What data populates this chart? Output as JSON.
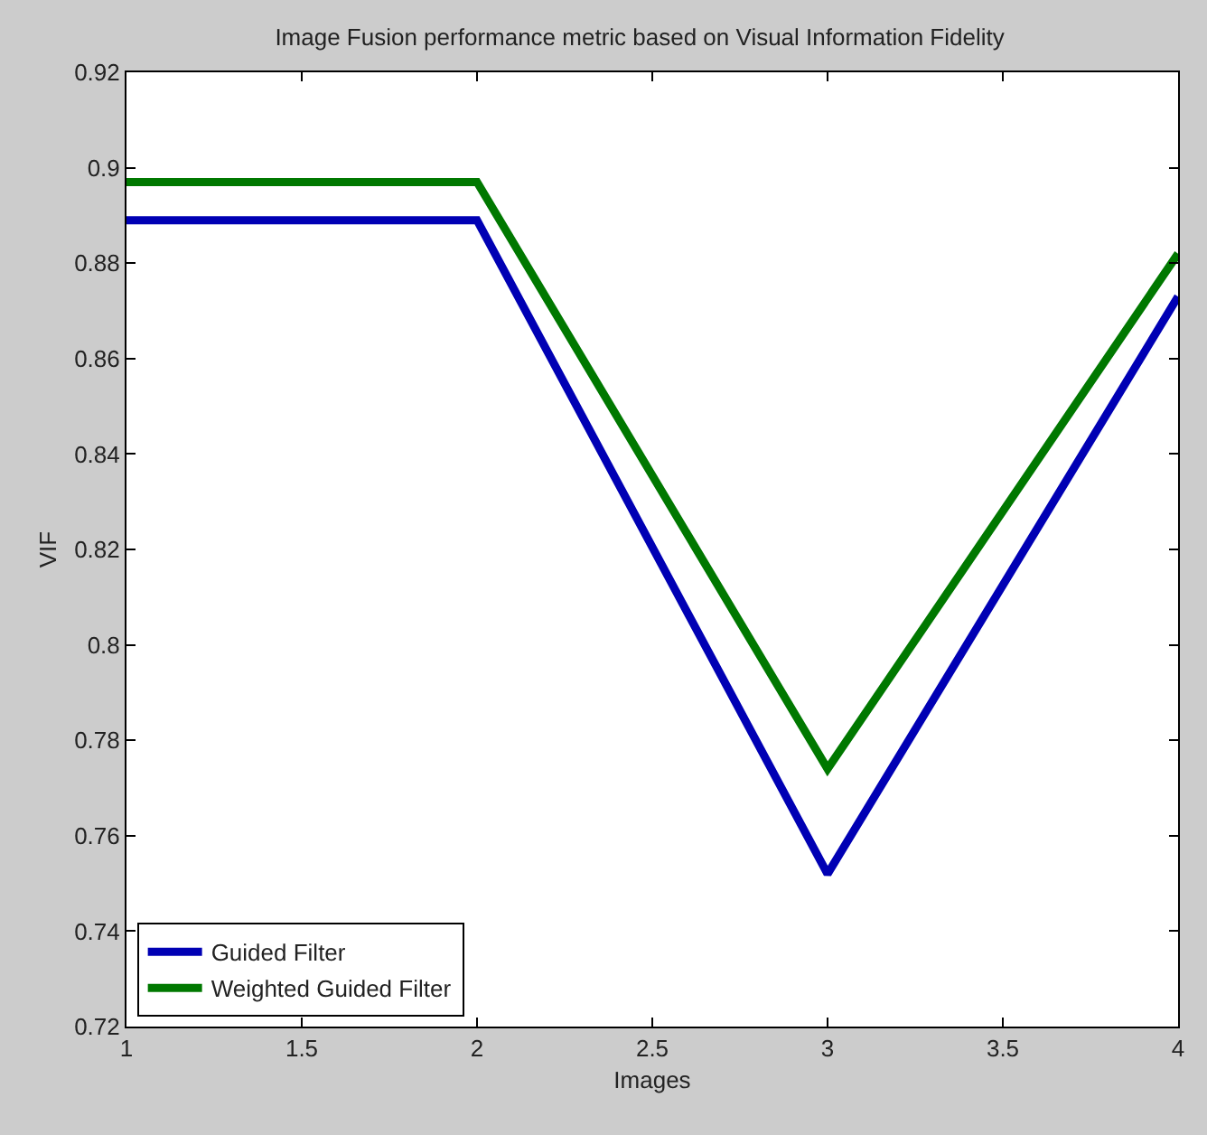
{
  "chart_data": {
    "type": "line",
    "title": "Image Fusion performance metric based on Visual Information Fidelity",
    "xlabel": "Images",
    "ylabel": "VIF",
    "x": [
      1,
      2,
      3,
      4
    ],
    "series": [
      {
        "name": "Guided Filter",
        "color": "#0000b4",
        "values": [
          0.889,
          0.889,
          0.752,
          0.873
        ]
      },
      {
        "name": "Weighted Guided Filter",
        "color": "#007800",
        "values": [
          0.897,
          0.897,
          0.774,
          0.882
        ]
      }
    ],
    "xlim": [
      1,
      4
    ],
    "xticks": [
      1,
      1.5,
      2,
      2.5,
      3,
      3.5,
      4
    ],
    "ylim": [
      0.72,
      0.92
    ],
    "yticks": [
      0.72,
      0.74,
      0.76,
      0.78,
      0.8,
      0.82,
      0.84,
      0.86,
      0.88,
      0.9,
      0.92
    ],
    "legend": "bottom left",
    "marker": "none",
    "line_style": "solid"
  }
}
